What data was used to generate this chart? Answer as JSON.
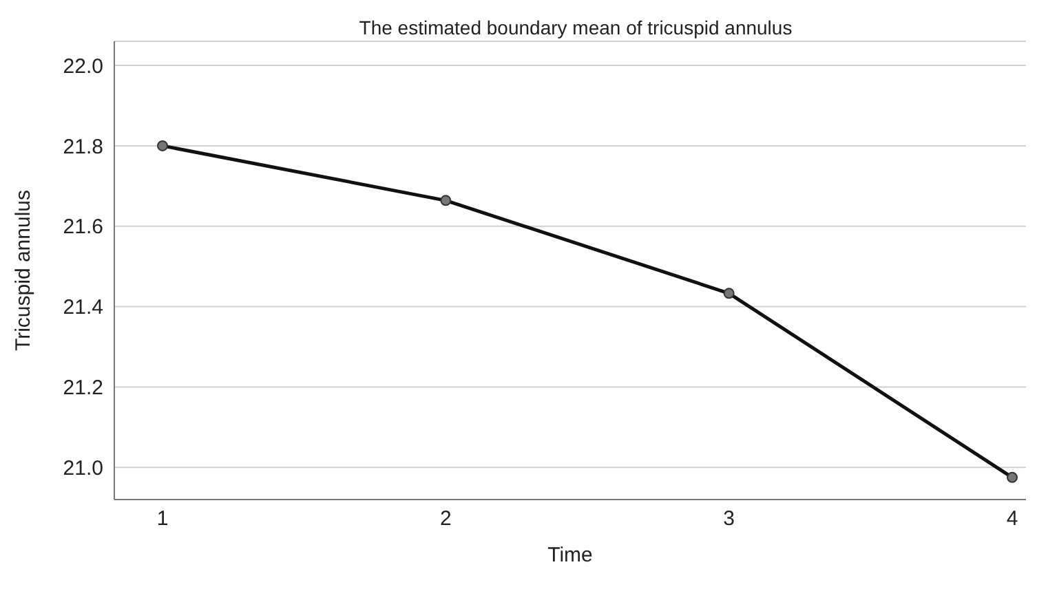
{
  "chart_data": {
    "type": "line",
    "title": "The estimated boundary mean of tricuspid annulus",
    "xlabel": "Time",
    "ylabel": "Tricuspid annulus",
    "categories": [
      "1",
      "2",
      "3",
      "4"
    ],
    "series": [
      {
        "color": "#111111",
        "values": [
          21.8,
          21.664,
          21.433,
          20.975
        ]
      }
    ],
    "ylim": [
      20.92,
      22.06
    ],
    "yticks": [
      {
        "value": 21.0,
        "label": "21.0"
      },
      21.2,
      21.4,
      21.6,
      21.8,
      {
        "value": 22.0,
        "label": "22.0"
      }
    ],
    "grid": "y",
    "marker": "circle",
    "line_style": "solid",
    "legend": false
  }
}
